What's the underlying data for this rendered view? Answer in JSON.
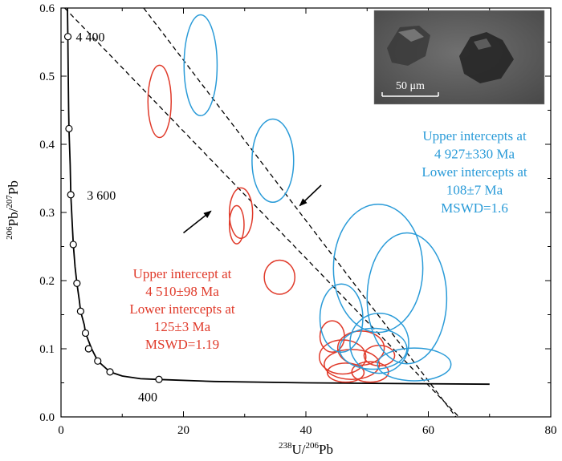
{
  "chart_data": {
    "type": "scatter",
    "xlabel": {
      "sup1": "238",
      "base1": "U/",
      "sup2": "206",
      "base2": "Pb"
    },
    "ylabel": {
      "sup1": "206",
      "base1": "Pb/",
      "sup2": "207",
      "base2": "Pb"
    },
    "xlim": [
      0,
      80
    ],
    "ylim": [
      0,
      0.6
    ],
    "x_ticks": [
      "0",
      "20",
      "40",
      "60",
      "80"
    ],
    "y_ticks": [
      "0.0",
      "0.1",
      "0.2",
      "0.3",
      "0.4",
      "0.5",
      "0.6"
    ],
    "concordia": {
      "points": [
        [
          1.05,
          0.6
        ],
        [
          1.12,
          0.558
        ],
        [
          1.18,
          0.5
        ],
        [
          1.25,
          0.45
        ],
        [
          1.3,
          0.423
        ],
        [
          1.5,
          0.37
        ],
        [
          1.6,
          0.326
        ],
        [
          1.8,
          0.29
        ],
        [
          2.0,
          0.253
        ],
        [
          2.3,
          0.22
        ],
        [
          2.6,
          0.196
        ],
        [
          3.0,
          0.17
        ],
        [
          3.2,
          0.155
        ],
        [
          3.8,
          0.135
        ],
        [
          4.0,
          0.123
        ],
        [
          5.0,
          0.1
        ],
        [
          6.0,
          0.082
        ],
        [
          8.0,
          0.066
        ],
        [
          10.0,
          0.06
        ],
        [
          13.0,
          0.056
        ],
        [
          16.0,
          0.055
        ],
        [
          25.0,
          0.052
        ],
        [
          40.0,
          0.05
        ],
        [
          55.0,
          0.049
        ],
        [
          70.0,
          0.048
        ]
      ],
      "markers": [
        [
          1.12,
          0.558
        ],
        [
          1.3,
          0.423
        ],
        [
          1.6,
          0.326
        ],
        [
          2.0,
          0.253
        ],
        [
          2.6,
          0.196
        ],
        [
          3.2,
          0.155
        ],
        [
          4.0,
          0.123
        ],
        [
          4.5,
          0.1
        ],
        [
          6.0,
          0.082
        ],
        [
          8.0,
          0.066
        ],
        [
          16.0,
          0.055
        ]
      ],
      "labels": [
        {
          "text": "4 400",
          "x": 1.12,
          "y": 0.558
        },
        {
          "text": "3 600",
          "x": 1.6,
          "y": 0.326
        },
        {
          "text": "400",
          "x": 16.0,
          "y": 0.055
        }
      ]
    },
    "discordia_lines": [
      {
        "name": "blue",
        "from": [
          0.6,
          0.6
        ],
        "to": [
          65,
          0.0
        ]
      },
      {
        "name": "red",
        "from": [
          13.5,
          0.6
        ],
        "to": [
          64.5,
          0.0
        ]
      }
    ],
    "series": [
      {
        "name": "red",
        "color": "#e03a2a",
        "ellipses": [
          {
            "x": 16.1,
            "y": 0.463,
            "rx": 1.9,
            "ry": 0.053
          },
          {
            "x": 29.4,
            "y": 0.299,
            "rx": 1.9,
            "ry": 0.037
          },
          {
            "x": 28.7,
            "y": 0.282,
            "rx": 1.2,
            "ry": 0.028
          },
          {
            "x": 35.7,
            "y": 0.205,
            "rx": 2.5,
            "ry": 0.025
          },
          {
            "x": 44.3,
            "y": 0.118,
            "rx": 2.0,
            "ry": 0.023
          },
          {
            "x": 46.0,
            "y": 0.088,
            "rx": 3.8,
            "ry": 0.025
          },
          {
            "x": 49.0,
            "y": 0.101,
            "rx": 3.8,
            "ry": 0.025
          },
          {
            "x": 47.5,
            "y": 0.077,
            "rx": 4.5,
            "ry": 0.022
          },
          {
            "x": 50.5,
            "y": 0.066,
            "rx": 3.0,
            "ry": 0.015
          },
          {
            "x": 46.5,
            "y": 0.065,
            "rx": 3.0,
            "ry": 0.014
          },
          {
            "x": 52.0,
            "y": 0.09,
            "rx": 2.5,
            "ry": 0.015
          }
        ]
      },
      {
        "name": "blue",
        "color": "#2a9bd8",
        "ellipses": [
          {
            "x": 22.8,
            "y": 0.516,
            "rx": 2.7,
            "ry": 0.074
          },
          {
            "x": 34.6,
            "y": 0.376,
            "rx": 3.4,
            "ry": 0.061
          },
          {
            "x": 51.8,
            "y": 0.218,
            "rx": 7.3,
            "ry": 0.094
          },
          {
            "x": 56.5,
            "y": 0.174,
            "rx": 6.5,
            "ry": 0.096
          },
          {
            "x": 45.8,
            "y": 0.145,
            "rx": 3.5,
            "ry": 0.05
          },
          {
            "x": 52.0,
            "y": 0.108,
            "rx": 4.8,
            "ry": 0.044
          },
          {
            "x": 57.7,
            "y": 0.077,
            "rx": 6.0,
            "ry": 0.024
          },
          {
            "x": 51.0,
            "y": 0.1,
            "rx": 5.5,
            "ry": 0.03
          }
        ]
      }
    ],
    "annotations": {
      "red": [
        "Upper intercept at",
        "4 510±98 Ma",
        "Lower intercepts at",
        "125±3 Ma",
        "MSWD=1.19"
      ],
      "blue": [
        "Upper intercepts at",
        "4 927±330 Ma",
        "Lower intercepts at",
        "108±7 Ma",
        "MSWD=1.6"
      ]
    },
    "inset": {
      "scale_bar_label": "50 μm",
      "position": "top-right"
    },
    "arrows": [
      {
        "from": [
          20,
          0.27
        ],
        "to": [
          24.5,
          0.302
        ]
      },
      {
        "from": [
          42.5,
          0.34
        ],
        "to": [
          39,
          0.31
        ]
      }
    ]
  }
}
